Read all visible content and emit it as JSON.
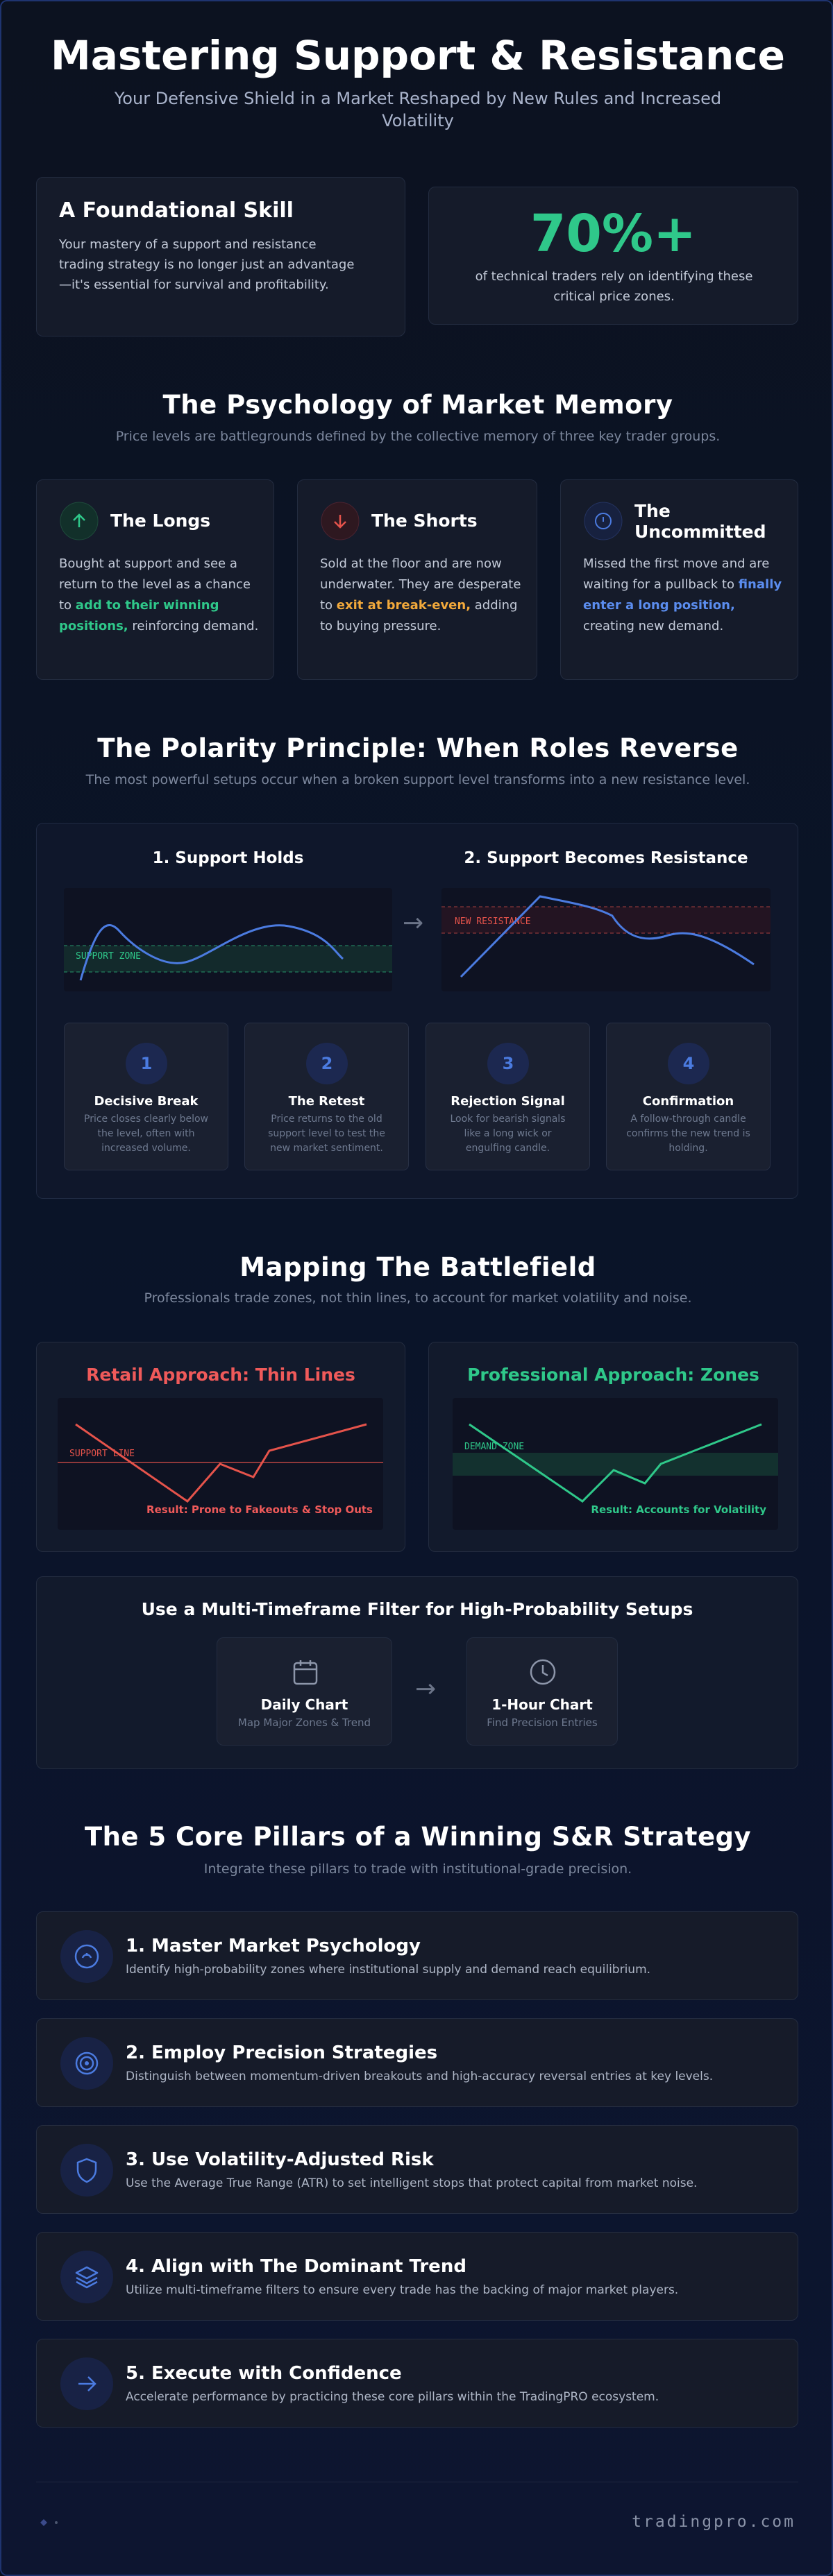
{
  "header": {
    "title": "Mastering Support & Resistance",
    "subtitle": "Your Defensive Shield in a Market Reshaped by New Rules and Increased Volatility"
  },
  "intro": {
    "title": "A Foundational Skill",
    "text": "Your mastery of a support and resistance trading strategy is no longer just an advantage—it's essential for survival and profitability.",
    "stat": "70%+",
    "stat_text": "of technical traders rely on identifying these critical price zones."
  },
  "psychology": {
    "title": "The Psychology of Market Memory",
    "subtitle": "Price levels are battlegrounds defined by the collective memory of three key trader groups.",
    "groups": [
      {
        "title": "The Longs",
        "text_before": "Bought at support and see a return to the level as a chance to ",
        "highlight": "add to their winning positions,",
        "text_after": " reinforcing demand."
      },
      {
        "title": "The Shorts",
        "text_before": "Sold at the floor and are now underwater. They are desperate to ",
        "highlight": "exit at break-even,",
        "text_after": " adding to buying pressure."
      },
      {
        "title": "The Uncommitted",
        "text_before": "Missed the first move and are waiting for a pullback to ",
        "highlight": "finally enter a long position,",
        "text_after": " creating new demand."
      }
    ]
  },
  "polarity": {
    "title": "The Polarity Principle: When Roles Reverse",
    "subtitle": "The most powerful setups occur when a broken support level transforms into a new resistance level.",
    "panels": [
      {
        "title": "1. Support Holds",
        "zone_label": "SUPPORT ZONE"
      },
      {
        "title": "2. Support Becomes Resistance",
        "zone_label": "NEW RESISTANCE"
      }
    ],
    "steps": [
      {
        "number": 1,
        "title": "Decisive Break",
        "text": "Price closes clearly below the level, often with increased volume."
      },
      {
        "number": 2,
        "title": "The Retest",
        "text": "Price returns to the old support level to test the new market sentiment."
      },
      {
        "number": 3,
        "title": "Rejection Signal",
        "text": "Look for bearish signals like a long wick or engulfing candle."
      },
      {
        "number": 4,
        "title": "Confirmation",
        "text": "A follow-through candle confirms the new trend is holding."
      }
    ]
  },
  "battlefield": {
    "title": "Mapping The Battlefield",
    "subtitle": "Professionals trade zones, not thin lines, to account for market volatility and noise.",
    "approaches": [
      {
        "title": "Retail Approach: Thin Lines",
        "line_label": "SUPPORT LINE",
        "result": "Result: Prone to Fakeouts & Stop Outs"
      },
      {
        "title": "Professional Approach: Zones",
        "line_label": "DEMAND ZONE",
        "result": "Result: Accounts for Volatility"
      }
    ]
  },
  "timeframe": {
    "title": "Use a Multi-Timeframe Filter for High-Probability Setups",
    "frames": [
      {
        "title": "Daily Chart",
        "text": "Map Major Zones & Trend"
      },
      {
        "title": "1-Hour Chart",
        "text": "Find Precision Entries"
      }
    ]
  },
  "pillars": {
    "title": "The 5 Core Pillars of a Winning S&R Strategy",
    "subtitle": "Integrate these pillars to trade with institutional-grade precision.",
    "items": [
      {
        "title": "1. Master Market Psychology",
        "text": "Identify high-probability zones where institutional supply and demand reach equilibrium."
      },
      {
        "title": "2. Employ Precision Strategies",
        "text": "Distinguish between momentum-driven breakouts and high-accuracy reversal entries at key levels."
      },
      {
        "title": "3. Use Volatility-Adjusted Risk",
        "text": "Use the Average True Range (ATR) to set intelligent stops that protect capital from market noise."
      },
      {
        "title": "4. Align with The Dominant Trend",
        "text": "Utilize multi-timeframe filters to ensure every trade has the backing of major market players."
      },
      {
        "title": "5. Execute with Confidence",
        "text": "Accelerate performance by practicing these core pillars within the TradingPRO ecosystem."
      }
    ]
  },
  "footer": {
    "site": "tradingpro.com"
  }
}
